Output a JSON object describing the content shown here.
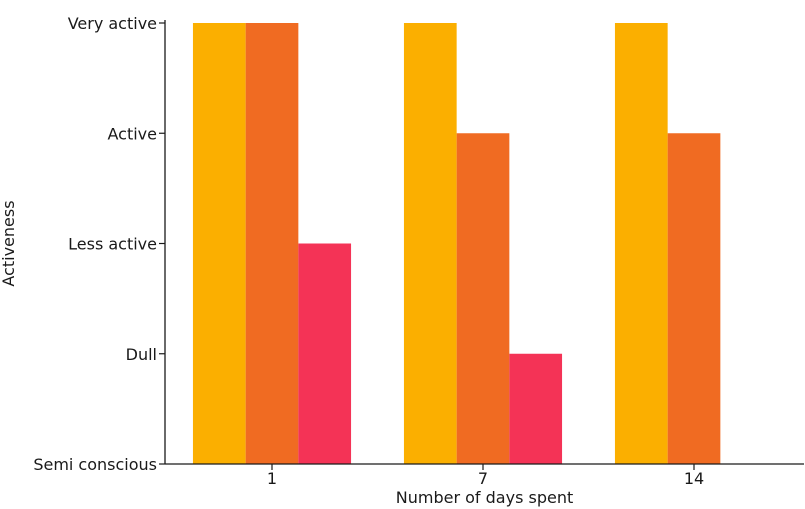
{
  "chart_data": {
    "type": "bar",
    "categories": [
      "1",
      "7",
      "14"
    ],
    "levels": [
      "Semi conscious",
      "Dull",
      "Less active",
      "Active",
      "Very active"
    ],
    "series": [
      {
        "values": [
          4,
          4,
          4
        ],
        "color": "#FBAF00"
      },
      {
        "values": [
          4,
          3,
          3
        ],
        "color": "#F06B22"
      },
      {
        "values": [
          2,
          1,
          0
        ],
        "color": "#F43356"
      }
    ],
    "xlabel": "Number of days spent",
    "ylabel": "Activeness",
    "ylim": [
      0,
      4
    ],
    "grid": false,
    "legend": "none"
  }
}
